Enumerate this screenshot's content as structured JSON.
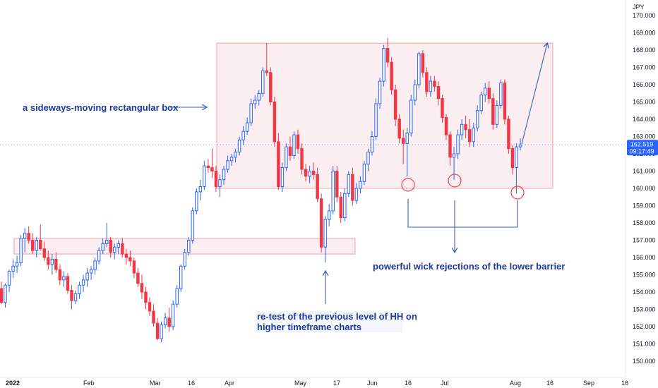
{
  "currency": "JPY",
  "last_price": "162.519",
  "countdown": "09:17:49",
  "y_ticks": [
    "150.000",
    "151.000",
    "152.000",
    "153.000",
    "154.000",
    "155.000",
    "156.000",
    "157.000",
    "158.000",
    "159.000",
    "160.000",
    "161.000",
    "162.000",
    "163.000",
    "164.000",
    "165.000",
    "166.000",
    "167.000",
    "168.000",
    "169.000",
    "170.000"
  ],
  "x_ticks": [
    "2022",
    "Feb",
    "Mar",
    "16",
    "Apr",
    "May",
    "17",
    "Jun",
    "16",
    "Jul",
    "Aug",
    "16",
    "Sep",
    "16"
  ],
  "annotations": {
    "box_label": "a sideways-moving rectangular box",
    "wick_label": "powerful wick rejections of the lower barrier",
    "retest_line1": "re-test of the previous level of HH on",
    "retest_line2": "higher timeframe charts"
  },
  "colors": {
    "up": "#2962ff",
    "down": "#f23645",
    "box_fill": "#fbeef0",
    "box_stroke": "#f0a0a8",
    "annotation": "#1a3a9c",
    "arrow": "#3a5fb5",
    "price_tag": "#2962ff"
  },
  "chart_data": {
    "type": "candlestick",
    "ylim": [
      149.5,
      170.5
    ],
    "box_range": {
      "bottom": 160.0,
      "top": 168.4,
      "x_start": "Mar 30",
      "x_end": "Aug 19"
    },
    "previous_hh_zone": {
      "bottom": 156.2,
      "top": 157.1
    },
    "candles": [
      {
        "o": 154.2,
        "h": 154.6,
        "l": 153.3,
        "c": 153.4
      },
      {
        "o": 153.4,
        "h": 154.5,
        "l": 153.1,
        "c": 154.4
      },
      {
        "o": 154.4,
        "h": 155.3,
        "l": 154.0,
        "c": 155.2
      },
      {
        "o": 155.2,
        "h": 155.9,
        "l": 154.8,
        "c": 155.5
      },
      {
        "o": 155.5,
        "h": 156.1,
        "l": 155.1,
        "c": 155.7
      },
      {
        "o": 155.7,
        "h": 157.3,
        "l": 155.5,
        "c": 157.1
      },
      {
        "o": 157.1,
        "h": 157.7,
        "l": 156.3,
        "c": 157.4
      },
      {
        "o": 157.4,
        "h": 157.8,
        "l": 156.8,
        "c": 157.0
      },
      {
        "o": 157.0,
        "h": 157.4,
        "l": 156.2,
        "c": 156.4
      },
      {
        "o": 156.4,
        "h": 157.2,
        "l": 156.0,
        "c": 157.0
      },
      {
        "o": 157.0,
        "h": 157.9,
        "l": 156.4,
        "c": 156.5
      },
      {
        "o": 156.5,
        "h": 156.9,
        "l": 155.8,
        "c": 156.0
      },
      {
        "o": 156.0,
        "h": 156.4,
        "l": 155.3,
        "c": 155.6
      },
      {
        "o": 155.6,
        "h": 156.2,
        "l": 155.0,
        "c": 155.9
      },
      {
        "o": 155.9,
        "h": 156.3,
        "l": 155.1,
        "c": 155.3
      },
      {
        "o": 155.3,
        "h": 155.6,
        "l": 154.4,
        "c": 154.7
      },
      {
        "o": 154.7,
        "h": 155.2,
        "l": 154.3,
        "c": 154.9
      },
      {
        "o": 154.9,
        "h": 155.1,
        "l": 153.9,
        "c": 154.1
      },
      {
        "o": 154.1,
        "h": 154.4,
        "l": 153.0,
        "c": 153.5
      },
      {
        "o": 153.5,
        "h": 154.1,
        "l": 153.3,
        "c": 153.9
      },
      {
        "o": 153.9,
        "h": 154.6,
        "l": 153.6,
        "c": 154.4
      },
      {
        "o": 154.4,
        "h": 155.0,
        "l": 154.0,
        "c": 154.7
      },
      {
        "o": 154.7,
        "h": 155.4,
        "l": 154.3,
        "c": 155.1
      },
      {
        "o": 155.1,
        "h": 155.5,
        "l": 154.7,
        "c": 155.3
      },
      {
        "o": 155.3,
        "h": 156.0,
        "l": 155.0,
        "c": 155.8
      },
      {
        "o": 155.8,
        "h": 156.6,
        "l": 155.6,
        "c": 156.4
      },
      {
        "o": 156.4,
        "h": 157.1,
        "l": 156.2,
        "c": 156.8
      },
      {
        "o": 156.8,
        "h": 158.0,
        "l": 156.6,
        "c": 157.0
      },
      {
        "o": 157.0,
        "h": 157.2,
        "l": 156.0,
        "c": 156.3
      },
      {
        "o": 156.3,
        "h": 156.8,
        "l": 155.9,
        "c": 156.6
      },
      {
        "o": 156.6,
        "h": 157.0,
        "l": 156.2,
        "c": 156.8
      },
      {
        "o": 156.8,
        "h": 157.1,
        "l": 156.0,
        "c": 156.2
      },
      {
        "o": 156.2,
        "h": 156.5,
        "l": 155.6,
        "c": 156.0
      },
      {
        "o": 156.0,
        "h": 156.4,
        "l": 155.5,
        "c": 155.8
      },
      {
        "o": 155.8,
        "h": 156.0,
        "l": 154.8,
        "c": 155.1
      },
      {
        "o": 155.1,
        "h": 155.4,
        "l": 154.3,
        "c": 154.5
      },
      {
        "o": 154.5,
        "h": 155.0,
        "l": 153.6,
        "c": 154.0
      },
      {
        "o": 154.0,
        "h": 154.3,
        "l": 153.0,
        "c": 153.4
      },
      {
        "o": 153.4,
        "h": 153.7,
        "l": 152.6,
        "c": 152.9
      },
      {
        "o": 152.9,
        "h": 153.3,
        "l": 152.0,
        "c": 152.2
      },
      {
        "o": 152.2,
        "h": 152.5,
        "l": 151.2,
        "c": 151.3
      },
      {
        "o": 151.3,
        "h": 152.3,
        "l": 151.1,
        "c": 152.1
      },
      {
        "o": 152.1,
        "h": 152.8,
        "l": 151.9,
        "c": 152.5
      },
      {
        "o": 152.5,
        "h": 153.1,
        "l": 151.7,
        "c": 152.0
      },
      {
        "o": 152.0,
        "h": 153.5,
        "l": 151.8,
        "c": 153.3
      },
      {
        "o": 153.3,
        "h": 154.4,
        "l": 153.1,
        "c": 154.2
      },
      {
        "o": 154.2,
        "h": 155.6,
        "l": 154.0,
        "c": 155.5
      },
      {
        "o": 155.5,
        "h": 156.5,
        "l": 155.3,
        "c": 156.3
      },
      {
        "o": 156.3,
        "h": 157.2,
        "l": 156.1,
        "c": 157.0
      },
      {
        "o": 157.0,
        "h": 158.9,
        "l": 156.8,
        "c": 158.7
      },
      {
        "o": 158.7,
        "h": 160.0,
        "l": 158.5,
        "c": 159.8
      },
      {
        "o": 159.8,
        "h": 160.5,
        "l": 159.3,
        "c": 160.1
      },
      {
        "o": 160.1,
        "h": 161.6,
        "l": 159.9,
        "c": 161.3
      },
      {
        "o": 161.3,
        "h": 161.7,
        "l": 160.9,
        "c": 161.2
      },
      {
        "o": 161.2,
        "h": 162.3,
        "l": 160.6,
        "c": 161.0
      },
      {
        "o": 161.0,
        "h": 161.3,
        "l": 159.8,
        "c": 160.1
      },
      {
        "o": 160.1,
        "h": 160.8,
        "l": 159.5,
        "c": 160.5
      },
      {
        "o": 160.5,
        "h": 161.3,
        "l": 160.2,
        "c": 161.1
      },
      {
        "o": 161.1,
        "h": 161.9,
        "l": 160.9,
        "c": 161.6
      },
      {
        "o": 161.6,
        "h": 162.0,
        "l": 161.3,
        "c": 161.8
      },
      {
        "o": 161.8,
        "h": 162.3,
        "l": 161.5,
        "c": 162.1
      },
      {
        "o": 162.1,
        "h": 163.0,
        "l": 161.9,
        "c": 162.8
      },
      {
        "o": 162.8,
        "h": 163.6,
        "l": 162.5,
        "c": 163.3
      },
      {
        "o": 163.3,
        "h": 164.1,
        "l": 163.1,
        "c": 163.8
      },
      {
        "o": 163.8,
        "h": 165.2,
        "l": 163.6,
        "c": 164.9
      },
      {
        "o": 164.9,
        "h": 165.4,
        "l": 164.6,
        "c": 165.1
      },
      {
        "o": 165.1,
        "h": 165.7,
        "l": 164.8,
        "c": 165.5
      },
      {
        "o": 165.5,
        "h": 167.0,
        "l": 165.3,
        "c": 166.8
      },
      {
        "o": 166.8,
        "h": 168.4,
        "l": 166.5,
        "c": 166.7
      },
      {
        "o": 166.7,
        "h": 167.0,
        "l": 164.8,
        "c": 165.0
      },
      {
        "o": 165.0,
        "h": 165.3,
        "l": 162.4,
        "c": 162.7
      },
      {
        "o": 162.7,
        "h": 163.2,
        "l": 159.9,
        "c": 160.1
      },
      {
        "o": 160.1,
        "h": 161.5,
        "l": 159.8,
        "c": 161.2
      },
      {
        "o": 161.2,
        "h": 162.6,
        "l": 161.0,
        "c": 162.4
      },
      {
        "o": 162.4,
        "h": 163.0,
        "l": 161.6,
        "c": 161.9
      },
      {
        "o": 161.9,
        "h": 163.3,
        "l": 161.7,
        "c": 163.1
      },
      {
        "o": 163.1,
        "h": 163.4,
        "l": 162.0,
        "c": 162.3
      },
      {
        "o": 162.3,
        "h": 162.6,
        "l": 160.8,
        "c": 161.1
      },
      {
        "o": 161.1,
        "h": 161.4,
        "l": 160.4,
        "c": 160.7
      },
      {
        "o": 160.7,
        "h": 161.3,
        "l": 160.3,
        "c": 161.0
      },
      {
        "o": 161.0,
        "h": 161.5,
        "l": 160.5,
        "c": 160.8
      },
      {
        "o": 160.8,
        "h": 161.2,
        "l": 159.2,
        "c": 159.4
      },
      {
        "o": 159.4,
        "h": 159.7,
        "l": 156.3,
        "c": 156.6
      },
      {
        "o": 156.6,
        "h": 158.4,
        "l": 155.7,
        "c": 158.2
      },
      {
        "o": 158.2,
        "h": 159.1,
        "l": 157.8,
        "c": 158.7
      },
      {
        "o": 158.7,
        "h": 161.3,
        "l": 158.5,
        "c": 161.0
      },
      {
        "o": 161.0,
        "h": 161.3,
        "l": 159.2,
        "c": 159.5
      },
      {
        "o": 159.5,
        "h": 159.8,
        "l": 158.0,
        "c": 158.3
      },
      {
        "o": 158.3,
        "h": 160.0,
        "l": 158.1,
        "c": 159.7
      },
      {
        "o": 159.7,
        "h": 161.0,
        "l": 159.5,
        "c": 160.8
      },
      {
        "o": 160.8,
        "h": 161.2,
        "l": 159.0,
        "c": 159.3
      },
      {
        "o": 159.3,
        "h": 160.3,
        "l": 159.1,
        "c": 160.0
      },
      {
        "o": 160.0,
        "h": 160.7,
        "l": 159.7,
        "c": 160.4
      },
      {
        "o": 160.4,
        "h": 161.6,
        "l": 160.2,
        "c": 161.4
      },
      {
        "o": 161.4,
        "h": 162.3,
        "l": 161.0,
        "c": 162.1
      },
      {
        "o": 162.1,
        "h": 163.3,
        "l": 161.9,
        "c": 163.0
      },
      {
        "o": 163.0,
        "h": 165.2,
        "l": 162.8,
        "c": 164.9
      },
      {
        "o": 164.9,
        "h": 166.4,
        "l": 164.6,
        "c": 166.2
      },
      {
        "o": 166.2,
        "h": 168.3,
        "l": 165.9,
        "c": 168.1
      },
      {
        "o": 168.1,
        "h": 168.7,
        "l": 167.0,
        "c": 167.3
      },
      {
        "o": 167.3,
        "h": 167.6,
        "l": 165.4,
        "c": 165.7
      },
      {
        "o": 165.7,
        "h": 166.0,
        "l": 163.6,
        "c": 164.0
      },
      {
        "o": 164.0,
        "h": 164.3,
        "l": 162.6,
        "c": 162.9
      },
      {
        "o": 162.9,
        "h": 163.4,
        "l": 161.4,
        "c": 162.6
      },
      {
        "o": 162.6,
        "h": 163.5,
        "l": 160.7,
        "c": 163.2
      },
      {
        "o": 163.2,
        "h": 165.4,
        "l": 163.0,
        "c": 165.1
      },
      {
        "o": 165.1,
        "h": 166.3,
        "l": 164.8,
        "c": 166.0
      },
      {
        "o": 166.0,
        "h": 167.9,
        "l": 165.8,
        "c": 167.8
      },
      {
        "o": 167.8,
        "h": 168.0,
        "l": 166.4,
        "c": 166.7
      },
      {
        "o": 166.7,
        "h": 167.0,
        "l": 165.3,
        "c": 165.6
      },
      {
        "o": 165.6,
        "h": 166.5,
        "l": 165.3,
        "c": 166.2
      },
      {
        "o": 166.2,
        "h": 166.5,
        "l": 165.6,
        "c": 165.9
      },
      {
        "o": 165.9,
        "h": 166.2,
        "l": 164.8,
        "c": 165.2
      },
      {
        "o": 165.2,
        "h": 165.4,
        "l": 163.8,
        "c": 164.1
      },
      {
        "o": 164.1,
        "h": 164.3,
        "l": 162.8,
        "c": 163.1
      },
      {
        "o": 163.1,
        "h": 163.3,
        "l": 161.3,
        "c": 161.8
      },
      {
        "o": 161.8,
        "h": 162.4,
        "l": 160.5,
        "c": 162.0
      },
      {
        "o": 162.0,
        "h": 163.4,
        "l": 161.7,
        "c": 163.1
      },
      {
        "o": 163.1,
        "h": 164.0,
        "l": 162.8,
        "c": 163.7
      },
      {
        "o": 163.7,
        "h": 164.2,
        "l": 162.9,
        "c": 163.4
      },
      {
        "o": 163.4,
        "h": 164.0,
        "l": 162.4,
        "c": 162.7
      },
      {
        "o": 162.7,
        "h": 163.8,
        "l": 162.4,
        "c": 163.5
      },
      {
        "o": 163.5,
        "h": 164.8,
        "l": 163.3,
        "c": 164.5
      },
      {
        "o": 164.5,
        "h": 165.6,
        "l": 164.3,
        "c": 165.4
      },
      {
        "o": 165.4,
        "h": 166.1,
        "l": 165.0,
        "c": 165.8
      },
      {
        "o": 165.8,
        "h": 166.2,
        "l": 164.9,
        "c": 165.2
      },
      {
        "o": 165.2,
        "h": 165.5,
        "l": 163.4,
        "c": 163.7
      },
      {
        "o": 163.7,
        "h": 165.1,
        "l": 163.5,
        "c": 164.8
      },
      {
        "o": 164.8,
        "h": 166.3,
        "l": 164.6,
        "c": 166.1
      },
      {
        "o": 166.1,
        "h": 166.3,
        "l": 163.7,
        "c": 164.0
      },
      {
        "o": 164.0,
        "h": 164.2,
        "l": 162.0,
        "c": 162.3
      },
      {
        "o": 162.3,
        "h": 162.5,
        "l": 160.8,
        "c": 161.2
      },
      {
        "o": 161.2,
        "h": 162.6,
        "l": 159.7,
        "c": 162.4
      },
      {
        "o": 162.4,
        "h": 162.9,
        "l": 162.2,
        "c": 162.519
      }
    ]
  }
}
